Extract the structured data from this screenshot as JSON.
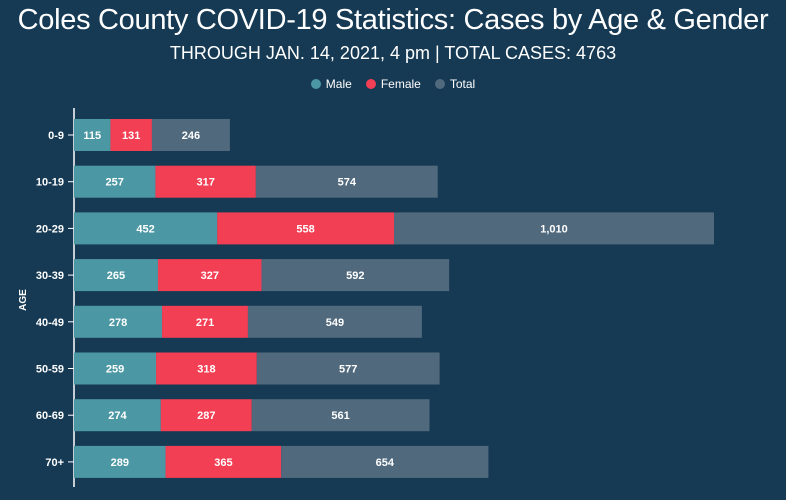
{
  "chart_data": {
    "type": "bar",
    "orientation": "horizontal",
    "title": "Coles County COVID-19 Statistics: Cases by Age & Gender",
    "subtitle": "THROUGH JAN. 14, 2021, 4 pm | TOTAL CASES: 4763",
    "ylabel": "AGE",
    "xlabel": "",
    "categories": [
      "0-9",
      "10-19",
      "20-29",
      "30-39",
      "40-49",
      "50-59",
      "60-69",
      "70+"
    ],
    "series": [
      {
        "name": "Male",
        "color": "#4c97a4",
        "values": [
          115,
          257,
          452,
          265,
          278,
          259,
          274,
          289
        ]
      },
      {
        "name": "Female",
        "color": "#f33f54",
        "values": [
          131,
          317,
          558,
          327,
          271,
          318,
          287,
          365
        ]
      },
      {
        "name": "Total",
        "color": "#51697d",
        "values": [
          246,
          574,
          1010,
          592,
          549,
          577,
          561,
          654
        ]
      }
    ],
    "value_labels": {
      "Male": [
        "115",
        "257",
        "452",
        "265",
        "278",
        "259",
        "274",
        "289"
      ],
      "Female": [
        "131",
        "317",
        "558",
        "327",
        "271",
        "318",
        "287",
        "365"
      ],
      "Total": [
        "246",
        "574",
        "1,010",
        "592",
        "549",
        "577",
        "561",
        "654"
      ]
    },
    "stacked": true,
    "xlim": [
      0,
      2020
    ],
    "legend_position": "top-center"
  }
}
